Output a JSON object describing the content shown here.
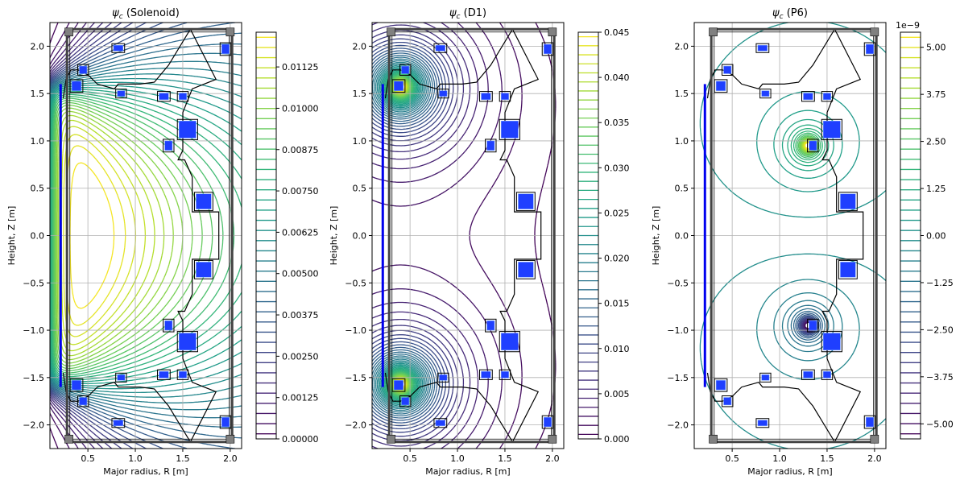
{
  "chart_data": [
    {
      "type": "contour",
      "title": "ψ_c (Solenoid)",
      "title_psi": "ψ",
      "title_sub": "c",
      "title_rest": " (Solenoid)",
      "xlabel": "Major radius, R [m]",
      "ylabel": "Height, Z [m]",
      "xlim": [
        0.1,
        2.12
      ],
      "ylim": [
        -2.25,
        2.25
      ],
      "xticks": [
        0.5,
        1.0,
        1.5,
        2.0
      ],
      "xtick_labels": [
        "0.5",
        "1.0",
        "1.5",
        "2.0"
      ],
      "yticks": [
        -2.0,
        -1.5,
        -1.0,
        -0.5,
        0.0,
        0.5,
        1.0,
        1.5,
        2.0
      ],
      "ytick_labels": [
        "−2.0",
        "−1.5",
        "−1.0",
        "−0.5",
        "0.0",
        "0.5",
        "1.0",
        "1.5",
        "2.0"
      ],
      "grid": true,
      "source": {
        "kind": "solenoid",
        "r": 0.18,
        "zlen": 3.2
      },
      "levels": 40,
      "colorbar": {
        "min": 0.0,
        "max": 0.0123,
        "ticks": [
          0.0,
          0.00125,
          0.0025,
          0.00375,
          0.005,
          0.00625,
          0.0075,
          0.00875,
          0.01,
          0.01125
        ],
        "tick_labels": [
          "0.00000",
          "0.00125",
          "0.00250",
          "0.00375",
          "0.00500",
          "0.00625",
          "0.00750",
          "0.00875",
          "0.01000",
          "0.01125"
        ],
        "offset": ""
      }
    },
    {
      "type": "contour",
      "title": "ψ_c (D1)",
      "title_psi": "ψ",
      "title_sub": "c",
      "title_rest": " (D1)",
      "xlabel": "Major radius, R [m]",
      "ylabel": "Height, Z [m]",
      "xlim": [
        0.1,
        2.12
      ],
      "ylim": [
        -2.25,
        2.25
      ],
      "xticks": [
        0.5,
        1.0,
        1.5,
        2.0
      ],
      "xtick_labels": [
        "0.5",
        "1.0",
        "1.5",
        "2.0"
      ],
      "yticks": [
        -2.0,
        -1.5,
        -1.0,
        -0.5,
        0.0,
        0.5,
        1.0,
        1.5,
        2.0
      ],
      "ytick_labels": [
        "−2.0",
        "−1.5",
        "−1.0",
        "−0.5",
        "0.0",
        "0.5",
        "1.0",
        "1.5",
        "2.0"
      ],
      "grid": true,
      "source": {
        "kind": "pair",
        "r": 0.4,
        "z": 1.57
      },
      "levels": 45,
      "colorbar": {
        "min": 0.0,
        "max": 0.045,
        "ticks": [
          0.0,
          0.005,
          0.01,
          0.015,
          0.02,
          0.025,
          0.03,
          0.035,
          0.04,
          0.045
        ],
        "tick_labels": [
          "0.000",
          "0.005",
          "0.010",
          "0.015",
          "0.020",
          "0.025",
          "0.030",
          "0.035",
          "0.040",
          "0.045"
        ],
        "offset": ""
      }
    },
    {
      "type": "contour",
      "title": "ψ_c (P6)",
      "title_psi": "ψ",
      "title_sub": "c",
      "title_rest": " (P6)",
      "xlabel": "Major radius, R [m]",
      "ylabel": "Height, Z [m]",
      "xlim": [
        0.1,
        2.12
      ],
      "ylim": [
        -2.25,
        2.25
      ],
      "xticks": [
        0.5,
        1.0,
        1.5,
        2.0
      ],
      "xtick_labels": [
        "0.5",
        "1.0",
        "1.5",
        "2.0"
      ],
      "yticks": [
        -2.0,
        -1.5,
        -1.0,
        -0.5,
        0.0,
        0.5,
        1.0,
        1.5,
        2.0
      ],
      "ytick_labels": [
        "−2.0",
        "−1.5",
        "−1.0",
        "−0.5",
        "0.0",
        "0.5",
        "1.0",
        "1.5",
        "2.0"
      ],
      "grid": true,
      "source": {
        "kind": "antipair",
        "r": 1.3,
        "z": 0.95
      },
      "levels": 40,
      "colorbar": {
        "min": -5.4,
        "max": 5.4,
        "ticks": [
          -5.0,
          -3.75,
          -2.5,
          -1.25,
          0.0,
          1.25,
          2.5,
          3.75,
          5.0
        ],
        "tick_labels": [
          "−5.00",
          "−3.75",
          "−2.50",
          "−1.25",
          "0.00",
          "1.25",
          "2.50",
          "3.75",
          "5.00"
        ],
        "offset": "1e−9"
      }
    }
  ],
  "colors": {
    "viridis": [
      "#440154",
      "#482878",
      "#3e4989",
      "#31688e",
      "#26828e",
      "#1f9e89",
      "#35b779",
      "#6ece58",
      "#b5de2b",
      "#fde725"
    ],
    "coil_fill": "#1f3fff",
    "coil_edge": "#000000",
    "passive": "#808080",
    "vessel": "#000000",
    "solenoid": "#0000ee"
  },
  "machine": {
    "wall": [
      [
        0.24,
        1.45
      ],
      [
        0.27,
        1.65
      ],
      [
        0.32,
        1.75
      ],
      [
        0.4,
        1.75
      ],
      [
        0.5,
        1.7
      ],
      [
        0.6,
        1.6
      ],
      [
        0.78,
        1.55
      ],
      [
        0.82,
        1.6
      ],
      [
        1.05,
        1.6
      ],
      [
        1.2,
        1.62
      ],
      [
        1.35,
        1.8
      ],
      [
        1.58,
        2.18
      ],
      [
        1.85,
        1.65
      ],
      [
        1.6,
        1.55
      ],
      [
        1.5,
        1.3
      ],
      [
        1.5,
        0.9
      ],
      [
        1.45,
        0.8
      ],
      [
        1.52,
        0.8
      ],
      [
        1.6,
        0.62
      ],
      [
        1.6,
        0.5
      ],
      [
        1.6,
        0.25
      ],
      [
        1.88,
        0.25
      ],
      [
        1.88,
        -0.25
      ],
      [
        1.6,
        -0.25
      ],
      [
        1.6,
        -0.5
      ],
      [
        1.6,
        -0.62
      ],
      [
        1.52,
        -0.8
      ],
      [
        1.45,
        -0.8
      ],
      [
        1.5,
        -0.9
      ],
      [
        1.5,
        -1.3
      ],
      [
        1.6,
        -1.55
      ],
      [
        1.85,
        -1.65
      ],
      [
        1.58,
        -2.18
      ],
      [
        1.35,
        -1.8
      ],
      [
        1.2,
        -1.62
      ],
      [
        1.05,
        -1.6
      ],
      [
        0.82,
        -1.6
      ],
      [
        0.78,
        -1.55
      ],
      [
        0.6,
        -1.6
      ],
      [
        0.5,
        -1.7
      ],
      [
        0.4,
        -1.75
      ],
      [
        0.32,
        -1.75
      ],
      [
        0.27,
        -1.65
      ],
      [
        0.24,
        -1.45
      ]
    ],
    "coils": [
      [
        0.38,
        1.58,
        0.1,
        0.1
      ],
      [
        0.45,
        1.75,
        0.08,
        0.08
      ],
      [
        0.82,
        1.98,
        0.1,
        0.06
      ],
      [
        0.85,
        1.5,
        0.08,
        0.06
      ],
      [
        1.3,
        1.47,
        0.1,
        0.07
      ],
      [
        1.5,
        1.47,
        0.08,
        0.07
      ],
      [
        1.55,
        1.12,
        0.18,
        0.18
      ],
      [
        1.35,
        0.95,
        0.08,
        0.1
      ],
      [
        1.72,
        0.36,
        0.16,
        0.16
      ],
      [
        1.95,
        1.97,
        0.08,
        0.1
      ],
      [
        1.72,
        -0.36,
        0.16,
        0.16
      ],
      [
        1.55,
        -1.12,
        0.18,
        0.18
      ],
      [
        1.35,
        -0.95,
        0.08,
        0.1
      ],
      [
        1.3,
        -1.47,
        0.1,
        0.07
      ],
      [
        1.5,
        -1.47,
        0.08,
        0.07
      ],
      [
        0.85,
        -1.5,
        0.08,
        0.06
      ],
      [
        0.82,
        -1.98,
        0.1,
        0.06
      ],
      [
        0.45,
        -1.75,
        0.08,
        0.08
      ],
      [
        0.38,
        -1.58,
        0.1,
        0.1
      ],
      [
        1.95,
        -1.97,
        0.08,
        0.1
      ]
    ]
  }
}
